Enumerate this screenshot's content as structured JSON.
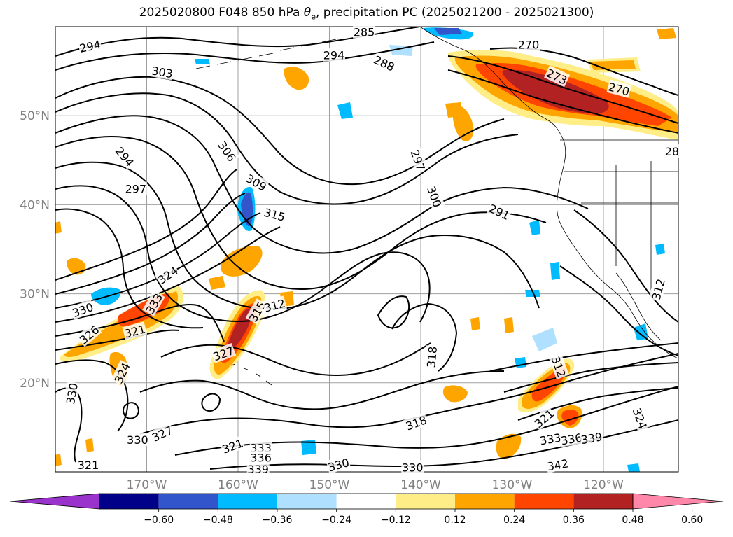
{
  "title_prefix": "2025020800 F048 850 hPa ",
  "title_theta": "θ",
  "title_theta_sub": "e",
  "title_suffix": ", precipitation PC (2025021200 - 2025021300)",
  "map": {
    "lon_min": -180,
    "lon_max": -111.8,
    "lat_min": 10,
    "lat_max": 60,
    "lat_ticks": [
      {
        "lat": 50,
        "label": "50°N"
      },
      {
        "lat": 40,
        "label": "40°N"
      },
      {
        "lat": 30,
        "label": "30°N"
      },
      {
        "lat": 20,
        "label": "20°N"
      }
    ],
    "lon_ticks": [
      {
        "lon": -170,
        "label": "170°W"
      },
      {
        "lon": -160,
        "label": "160°W"
      },
      {
        "lon": -150,
        "label": "150°W"
      },
      {
        "lon": -140,
        "label": "140°W"
      },
      {
        "lon": -130,
        "label": "130°W"
      },
      {
        "lon": -120,
        "label": "120°W"
      }
    ]
  },
  "contour_labels": [
    {
      "text": "294",
      "lon": -176.2,
      "lat": 57.8,
      "angle": -12
    },
    {
      "text": "303",
      "lon": -168.3,
      "lat": 54.9,
      "angle": 10
    },
    {
      "text": "294",
      "lon": -149.5,
      "lat": 56.8,
      "angle": 0
    },
    {
      "text": "285",
      "lon": -146.2,
      "lat": 59.4,
      "angle": 0
    },
    {
      "text": "288",
      "lon": -144.0,
      "lat": 55.9,
      "angle": 25
    },
    {
      "text": "270",
      "lon": -128.2,
      "lat": 58.0,
      "angle": 0
    },
    {
      "text": "273",
      "lon": -125.1,
      "lat": 54.4,
      "angle": 25
    },
    {
      "text": "270",
      "lon": -118.3,
      "lat": 53.0,
      "angle": 15
    },
    {
      "text": "306",
      "lon": -161.2,
      "lat": 46.0,
      "angle": 55
    },
    {
      "text": "294",
      "lon": -172.4,
      "lat": 45.4,
      "angle": 50
    },
    {
      "text": "297",
      "lon": -171.2,
      "lat": 41.8,
      "angle": 0
    },
    {
      "text": "309",
      "lon": -158.0,
      "lat": 42.5,
      "angle": 30
    },
    {
      "text": "315",
      "lon": -156.0,
      "lat": 38.9,
      "angle": 15
    },
    {
      "text": "297",
      "lon": -140.3,
      "lat": 45.0,
      "angle": 70
    },
    {
      "text": "300",
      "lon": -138.5,
      "lat": 40.9,
      "angle": 70
    },
    {
      "text": "291",
      "lon": -131.4,
      "lat": 39.2,
      "angle": 25
    },
    {
      "text": "324",
      "lon": -167.7,
      "lat": 32.1,
      "angle": -35
    },
    {
      "text": "330",
      "lon": -177.0,
      "lat": 28.2,
      "angle": -20
    },
    {
      "text": "333",
      "lon": -169.2,
      "lat": 28.9,
      "angle": -60
    },
    {
      "text": "326",
      "lon": -176.3,
      "lat": 25.4,
      "angle": -40
    },
    {
      "text": "321",
      "lon": -171.3,
      "lat": 25.8,
      "angle": -15
    },
    {
      "text": "315",
      "lon": -157.9,
      "lat": 28.0,
      "angle": -60
    },
    {
      "text": "312",
      "lon": -156.0,
      "lat": 28.7,
      "angle": -15
    },
    {
      "text": "327",
      "lon": -161.6,
      "lat": 23.3,
      "angle": -20
    },
    {
      "text": "324",
      "lon": -172.7,
      "lat": 21.1,
      "angle": -65
    },
    {
      "text": "330",
      "lon": -178.2,
      "lat": 18.8,
      "angle": -80
    },
    {
      "text": "318",
      "lon": -138.8,
      "lat": 22.9,
      "angle": -85
    },
    {
      "text": "312",
      "lon": -124.9,
      "lat": 21.8,
      "angle": 70
    },
    {
      "text": "312",
      "lon": -114.0,
      "lat": 30.5,
      "angle": -75
    },
    {
      "text": "318",
      "lon": -140.5,
      "lat": 15.5,
      "angle": -20
    },
    {
      "text": "321",
      "lon": -126.5,
      "lat": 16.0,
      "angle": -40
    },
    {
      "text": "324",
      "lon": -116.0,
      "lat": 16.0,
      "angle": 70
    },
    {
      "text": "330",
      "lon": -171.0,
      "lat": 13.6,
      "angle": 0
    },
    {
      "text": "327",
      "lon": -168.3,
      "lat": 14.3,
      "angle": -25
    },
    {
      "text": "321",
      "lon": -160.6,
      "lat": 12.9,
      "angle": -20
    },
    {
      "text": "333",
      "lon": -157.5,
      "lat": 12.7,
      "angle": 0
    },
    {
      "text": "336",
      "lon": -157.5,
      "lat": 11.6,
      "angle": 0
    },
    {
      "text": "339",
      "lon": -157.8,
      "lat": 10.3,
      "angle": 0
    },
    {
      "text": "330",
      "lon": -149.0,
      "lat": 10.8,
      "angle": -15
    },
    {
      "text": "330",
      "lon": -140.9,
      "lat": 10.5,
      "angle": 0
    },
    {
      "text": "333",
      "lon": -125.8,
      "lat": 13.7,
      "angle": -10
    },
    {
      "text": "336",
      "lon": -123.5,
      "lat": 13.7,
      "angle": -10
    },
    {
      "text": "339",
      "lon": -121.3,
      "lat": 13.8,
      "angle": -10
    },
    {
      "text": "342",
      "lon": -125.0,
      "lat": 10.8,
      "angle": -10
    },
    {
      "text": "321",
      "lon": -176.4,
      "lat": 10.8,
      "angle": 0
    },
    {
      "text": "28",
      "lon": -112.5,
      "lat": 46.0,
      "angle": 0
    }
  ],
  "colorbar": {
    "colors": [
      "#9933cc",
      "#000088",
      "#3355cc",
      "#00bbff",
      "#b0e0ff",
      "#ffffff",
      "#ffee88",
      "#ffa500",
      "#ff4500",
      "#b22222",
      "#ff88aa"
    ],
    "tick_labels": [
      "−0.60",
      "−0.48",
      "−0.36",
      "−0.24",
      "−0.12",
      "0.12",
      "0.24",
      "0.36",
      "0.48",
      "0.60"
    ]
  },
  "colors": {
    "precip_light": "#ffee88",
    "precip_moderate": "#ffa500",
    "precip_heavy": "#ff4500",
    "precip_extreme": "#b22222",
    "negative_light": "#b0e0ff",
    "negative_moderate": "#00bbff",
    "negative_strong": "#3355cc",
    "land_fill": "#ffffff",
    "gridline": "#a0a0a0",
    "tick_label": "#808080"
  }
}
